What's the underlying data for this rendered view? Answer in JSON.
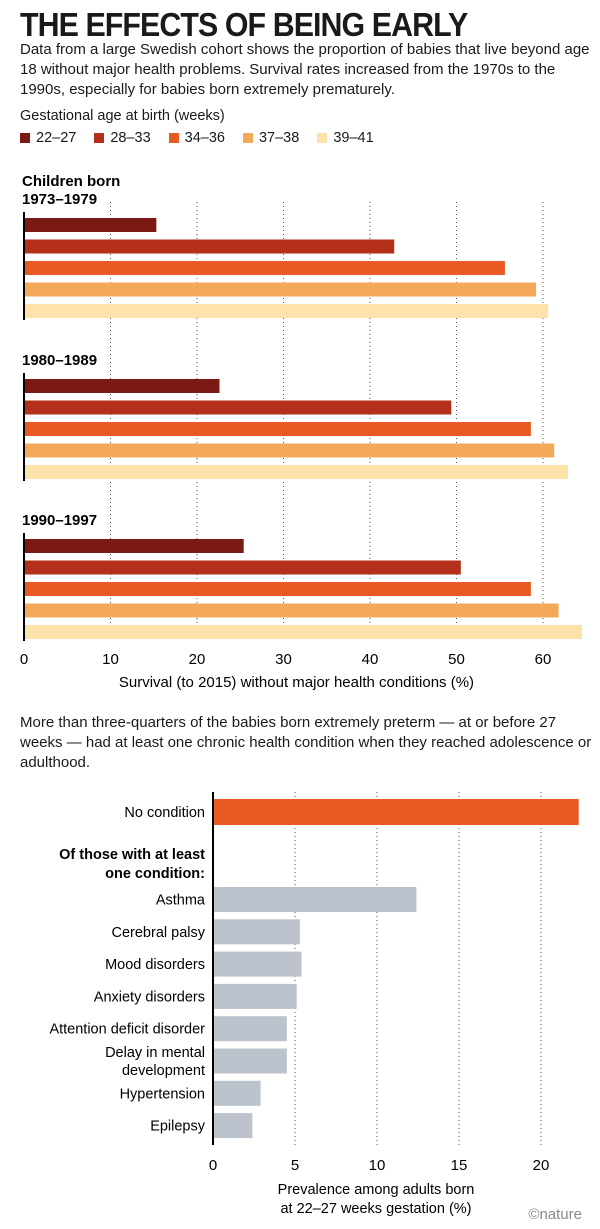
{
  "header": {
    "title": "THE EFFECTS OF BEING EARLY",
    "intro": "Data from a large Swedish cohort shows the proportion of babies that live beyond age 18 without major health problems. Survival rates increased from the 1970s to the 1990s, especially for babies born extremely prematurely."
  },
  "legend": {
    "title": "Gestational age at birth (weeks)"
  },
  "section2": {
    "intro": "More than three-quarters of the babies born extremely preterm — at or before 27 weeks — had at least one chronic health condition when they reached adolescence or adulthood."
  },
  "logo": "©nature",
  "colors": {
    "22–27": "#7a1a12",
    "28–33": "#b5301b",
    "34–36": "#e85a24",
    "37–38": "#f4a85a",
    "39–41": "#fde3a9",
    "highlight": "#e85a24",
    "neutral": "#bcc3cc",
    "grid": "#555555"
  },
  "chart_data": [
    {
      "type": "bar",
      "orientation": "horizontal",
      "title": "",
      "xlabel": "Survival (to 2015) without major health conditions (%)",
      "xlim": [
        0,
        63
      ],
      "xticks": [
        0,
        10,
        20,
        30,
        40,
        50,
        60
      ],
      "grid": true,
      "legend_title": "Gestational age at birth (weeks)",
      "legend_position": "top",
      "series_names": [
        "22–27",
        "28–33",
        "34–36",
        "37–38",
        "39–41"
      ],
      "groups": [
        {
          "label": "Children born\n1973–1979",
          "values": [
            15.3,
            42.8,
            55.6,
            59.2,
            60.6
          ]
        },
        {
          "label": "1980–1989",
          "values": [
            22.6,
            49.4,
            58.6,
            61.3,
            62.9
          ]
        },
        {
          "label": "1990–1997",
          "values": [
            25.4,
            50.5,
            58.6,
            61.8,
            64.5
          ]
        }
      ]
    },
    {
      "type": "bar",
      "orientation": "horizontal",
      "title": "",
      "xlabel": "Prevalence among adults born\nat 22–27 weeks gestation (%)",
      "xlim": [
        0,
        22
      ],
      "xticks": [
        0,
        5,
        10,
        15,
        20
      ],
      "grid": true,
      "subheading": "Of those with at least\none condition:",
      "highlight": {
        "label": "No condition",
        "value": 22.3
      },
      "categories": [
        "Asthma",
        "Cerebral palsy",
        "Mood disorders",
        "Anxiety disorders",
        "Attention deficit disorder",
        "Delay in mental\ndevelopment",
        "Hypertension",
        "Epilepsy"
      ],
      "values": [
        12.4,
        5.3,
        5.4,
        5.1,
        4.5,
        4.5,
        2.9,
        2.4
      ]
    }
  ]
}
